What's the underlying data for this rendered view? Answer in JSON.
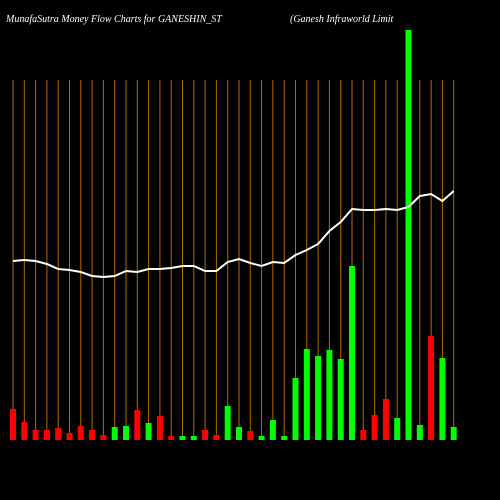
{
  "chart_data": {
    "type": "bar",
    "title": "MunafaSutra  Money Flow  Charts for GANESHIN_ST",
    "subtitle": "(Ganesh Infraworld Limit",
    "categories": [
      null,
      null,
      null,
      null,
      null,
      null,
      null,
      null,
      null,
      null,
      null,
      null,
      null,
      null,
      null,
      null,
      null,
      null,
      null,
      null,
      null,
      null,
      null,
      null,
      null,
      null,
      null,
      null,
      null,
      null,
      null,
      null,
      null,
      null,
      null,
      null,
      null,
      null,
      null,
      null
    ],
    "values": [
      31,
      18,
      10,
      10,
      12,
      7,
      14,
      10,
      5,
      13,
      14,
      30,
      17,
      24,
      4,
      4,
      4,
      10,
      5,
      34,
      13,
      9,
      4,
      20,
      4,
      62,
      91,
      84,
      90,
      81,
      174,
      10,
      25,
      41,
      22,
      410,
      15,
      104,
      82,
      13
    ],
    "colors": [
      "#ff0000",
      "#ff0000",
      "#ff0000",
      "#ff0000",
      "#ff0000",
      "#ff0000",
      "#ff0000",
      "#ff0000",
      "#ff0000",
      "#00ff00",
      "#00ff00",
      "#ff0000",
      "#00ff00",
      "#ff0000",
      "#ff0000",
      "#00ff00",
      "#00ff00",
      "#ff0000",
      "#ff0000",
      "#00ff00",
      "#00ff00",
      "#ff0000",
      "#00ff00",
      "#00ff00",
      "#00ff00",
      "#00ff00",
      "#00ff00",
      "#00ff00",
      "#00ff00",
      "#00ff00",
      "#00ff00",
      "#ff0000",
      "#ff0000",
      "#ff0000",
      "#00ff00",
      "#00ff00",
      "#00ff00",
      "#ff0000",
      "#00ff00",
      "#00ff00"
    ],
    "line_values": [
      179,
      180,
      179,
      176,
      171,
      170,
      168,
      164,
      163,
      164,
      169,
      168,
      171,
      171,
      172,
      174,
      174,
      169,
      169,
      178,
      181,
      177,
      174,
      178,
      177,
      185,
      190,
      196,
      209,
      218,
      231,
      230,
      230,
      231,
      230,
      233,
      244,
      246,
      239,
      249
    ],
    "line_color": "#ffffff",
    "grid_color": "#b36b00",
    "ylim": [
      0,
      440
    ]
  }
}
